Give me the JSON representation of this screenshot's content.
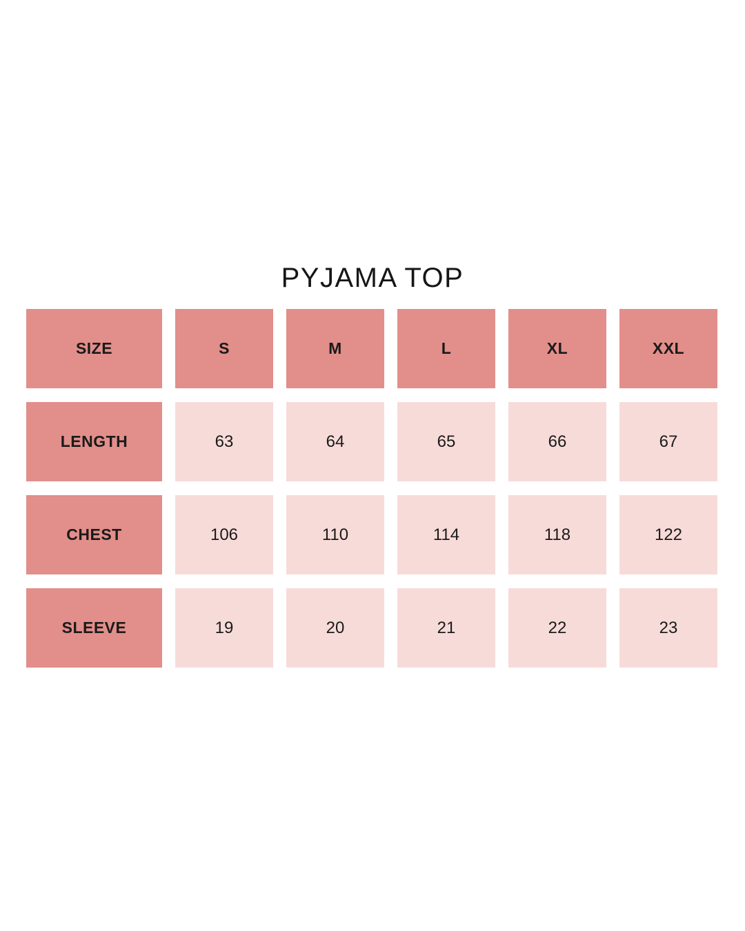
{
  "title": "PYJAMA TOP",
  "colors": {
    "background": "#FFFFFF",
    "header_cell": "#E28E8A",
    "value_cell": "#F7DBD9",
    "text": "#1A1A1A"
  },
  "chart_data": {
    "type": "table",
    "title": "PYJAMA TOP",
    "columns": [
      "SIZE",
      "S",
      "M",
      "L",
      "XL",
      "XXL"
    ],
    "rows": [
      {
        "label": "LENGTH",
        "values": [
          63,
          64,
          65,
          66,
          67
        ]
      },
      {
        "label": "CHEST",
        "values": [
          106,
          110,
          114,
          118,
          122
        ]
      },
      {
        "label": "SLEEVE",
        "values": [
          19,
          20,
          21,
          22,
          23
        ]
      }
    ]
  }
}
